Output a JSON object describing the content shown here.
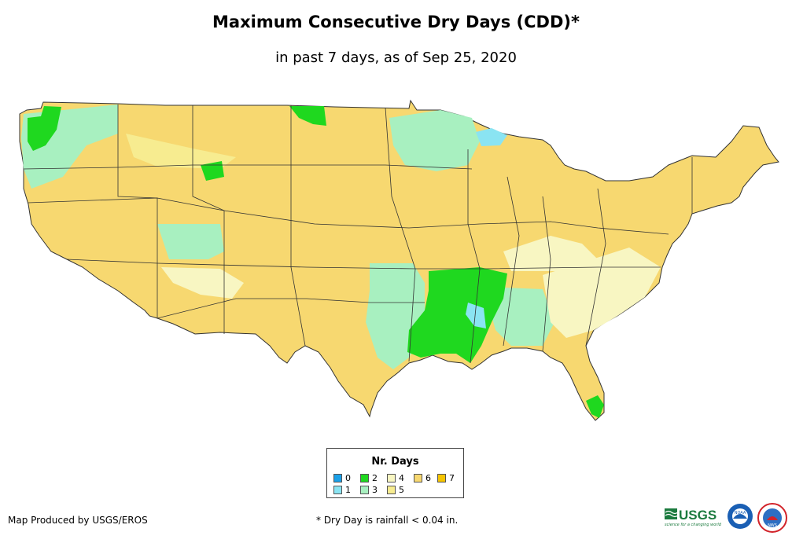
{
  "header": {
    "title": "Maximum Consecutive Dry Days (CDD)*",
    "subtitle": "in past 7 days, as of Sep 25, 2020"
  },
  "legend": {
    "title": "Nr. Days",
    "items": [
      {
        "label": "0",
        "color": "#1aa0e8"
      },
      {
        "label": "1",
        "color": "#8ae4f2"
      },
      {
        "label": "2",
        "color": "#1fd81f"
      },
      {
        "label": "3",
        "color": "#a8f0c0"
      },
      {
        "label": "4",
        "color": "#f8f6c2"
      },
      {
        "label": "5",
        "color": "#f7ec90"
      },
      {
        "label": "6",
        "color": "#f7d870"
      },
      {
        "label": "7",
        "color": "#f5c400"
      }
    ]
  },
  "footer": {
    "credit": "Map Produced by USGS/EROS",
    "note": "* Dry Day is rainfall < 0.04 in."
  },
  "logos": {
    "usgs": {
      "text": "USGS",
      "tagline": "science for a changing world",
      "color": "#1b7a3e"
    },
    "noaa": {
      "text": "NOAA",
      "color": "#1a5fb4"
    },
    "nws": {
      "text": "NWS",
      "color": "#d2232a"
    }
  }
}
